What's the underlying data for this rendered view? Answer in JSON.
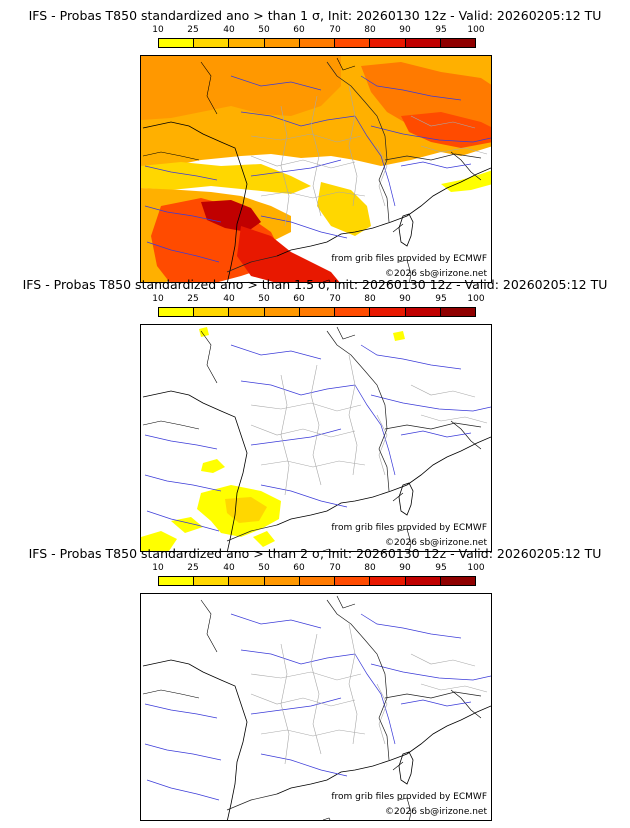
{
  "legend": {
    "ticks": [
      "10",
      "25",
      "40",
      "50",
      "60",
      "70",
      "80",
      "90",
      "95",
      "100"
    ],
    "colors": [
      "#ffff00",
      "#ffd700",
      "#ffb000",
      "#ff9800",
      "#ff7a00",
      "#ff4b00",
      "#e81800",
      "#c00000",
      "#8f0000"
    ]
  },
  "credits": {
    "source": "from grib files provided by ECMWF",
    "copyright": "©2026 sb@irizone.net"
  },
  "panels": [
    {
      "title": "IFS - Probas T850  standardized ano > than 1 σ, Init: 20260130 12z - Valid: 20260205:12 TU",
      "threshold": "1 σ"
    },
    {
      "title": "IFS - Probas T850  standardized ano > than 1.5 σ, Init: 20260130 12z - Valid: 20260205:12 TU",
      "threshold": "1.5 σ"
    },
    {
      "title": "IFS - Probas T850  standardized ano > than 2 σ, Init: 20260130 12z - Valid: 20260205:12 TU",
      "threshold": "2 σ"
    }
  ]
}
